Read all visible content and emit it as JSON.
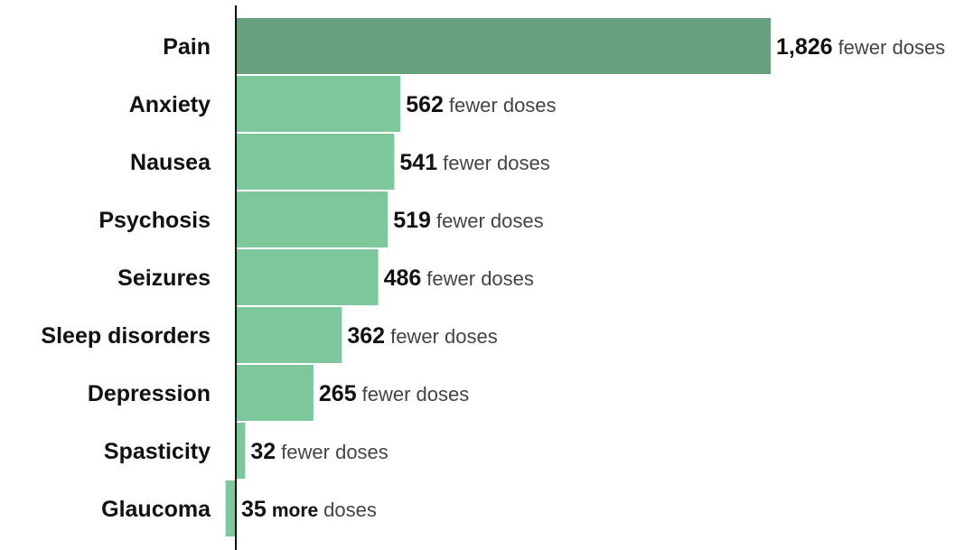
{
  "chart_data": {
    "type": "bar",
    "orientation": "horizontal",
    "categories": [
      "Pain",
      "Anxiety",
      "Nausea",
      "Psychosis",
      "Seizures",
      "Sleep disorders",
      "Depression",
      "Spasticity",
      "Glaucoma"
    ],
    "values": [
      -1826,
      -562,
      -541,
      -519,
      -486,
      -362,
      -265,
      -32,
      35
    ],
    "value_labels": [
      {
        "number": "1,826",
        "qualifier": "",
        "suffix": "fewer doses"
      },
      {
        "number": "562",
        "qualifier": "",
        "suffix": "fewer doses"
      },
      {
        "number": "541",
        "qualifier": "",
        "suffix": "fewer doses"
      },
      {
        "number": "519",
        "qualifier": "",
        "suffix": "fewer doses"
      },
      {
        "number": "486",
        "qualifier": "",
        "suffix": "fewer doses"
      },
      {
        "number": "362",
        "qualifier": "",
        "suffix": "fewer doses"
      },
      {
        "number": "265",
        "qualifier": "",
        "suffix": "fewer doses"
      },
      {
        "number": "32",
        "qualifier": "",
        "suffix": "fewer doses"
      },
      {
        "number": "35",
        "qualifier": "more",
        "suffix": "doses"
      }
    ],
    "highlight_index": 0,
    "colors": {
      "bar": "#7ec79d",
      "highlight_bar": "#66a07c",
      "axis": "#111111"
    },
    "title": "",
    "xlabel": "",
    "ylabel": "",
    "grid": false,
    "legend": false
  }
}
